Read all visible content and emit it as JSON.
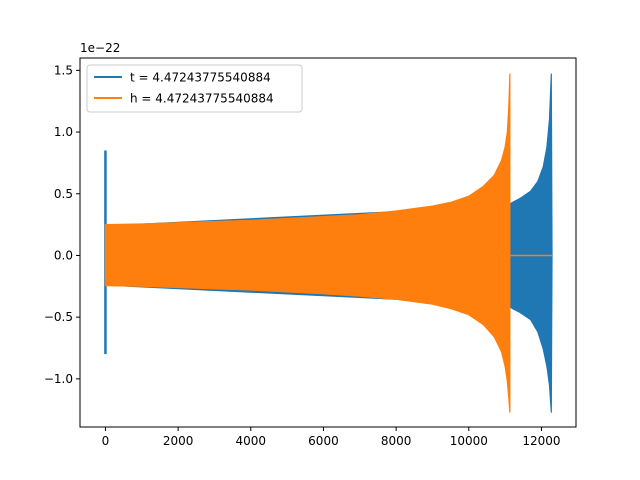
{
  "chart_data": {
    "type": "line",
    "title": "",
    "xlabel": "",
    "ylabel": "",
    "offset_label": "1e−22",
    "xlim": [
      -700,
      12950
    ],
    "ylim": [
      -1.39,
      1.6
    ],
    "x_ticks": [
      0,
      2000,
      4000,
      6000,
      8000,
      10000,
      12000
    ],
    "x_tick_labels": [
      "0",
      "2000",
      "4000",
      "6000",
      "8000",
      "10000",
      "12000"
    ],
    "y_ticks": [
      -1.0,
      -0.5,
      0.0,
      0.5,
      1.0,
      1.5
    ],
    "y_tick_labels": [
      "−1.0",
      "−0.5",
      "0.0",
      "0.5",
      "1.0",
      "1.5"
    ],
    "grid": false,
    "legend_position": "top-left",
    "series": [
      {
        "name": "t = 4.47243775540884",
        "color": "#1f77b4",
        "segments": [
          {
            "kind": "spike",
            "x": 0,
            "y_min": -0.8,
            "y_max": 0.85
          },
          {
            "kind": "band",
            "x": [
              0,
              11150
            ],
            "upper": [
              0.24,
              0.4
            ],
            "lower": [
              -0.24,
              -0.4
            ]
          },
          {
            "kind": "band",
            "x": [
              11150,
              11200,
              11400,
              11700,
              11900,
              12050,
              12150,
              12220,
              12270,
              12290
            ],
            "upper": [
              0.42,
              0.43,
              0.46,
              0.52,
              0.6,
              0.72,
              0.88,
              1.1,
              1.47,
              0.02
            ],
            "lower": [
              -0.42,
              -0.43,
              -0.46,
              -0.52,
              -0.62,
              -0.76,
              -0.9,
              -1.05,
              -1.27,
              -0.02
            ]
          }
        ]
      },
      {
        "name": "h = 4.47243775540884",
        "color": "#ff7f0e",
        "segments": [
          {
            "kind": "band",
            "x": [
              0,
              1000,
              2000,
              3000,
              4000,
              5000,
              6000,
              7000,
              8000,
              9000,
              9500,
              10000,
              10400,
              10700,
              10900,
              11000,
              11060,
              11100,
              11130
            ],
            "upper": [
              0.25,
              0.255,
              0.265,
              0.275,
              0.285,
              0.3,
              0.315,
              0.33,
              0.36,
              0.4,
              0.43,
              0.48,
              0.56,
              0.65,
              0.77,
              0.88,
              1.0,
              1.2,
              1.47
            ],
            "lower": [
              -0.245,
              -0.25,
              -0.26,
              -0.27,
              -0.28,
              -0.295,
              -0.31,
              -0.33,
              -0.355,
              -0.395,
              -0.43,
              -0.48,
              -0.56,
              -0.66,
              -0.78,
              -0.9,
              -1.02,
              -1.15,
              -1.27
            ]
          },
          {
            "kind": "flat",
            "x": [
              11150,
              12290
            ],
            "y": 0.0
          }
        ]
      }
    ]
  }
}
